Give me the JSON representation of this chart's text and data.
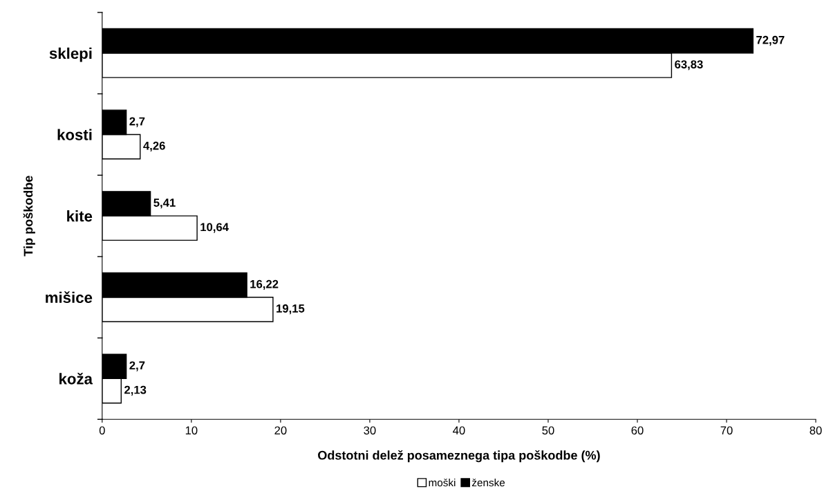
{
  "chart_data": {
    "type": "bar",
    "orientation": "horizontal",
    "xlabel": "Odstotni delež posameznega tipa poškodbe (%)",
    "ylabel": "Tip poškodbe",
    "categories": [
      "sklepi",
      "kosti",
      "kite",
      "mišice",
      "koža"
    ],
    "series": [
      {
        "name": "moški",
        "color": "#ffffff",
        "values": [
          63.83,
          4.26,
          10.64,
          19.15,
          2.13
        ],
        "value_labels": [
          "63,83",
          "4,26",
          "10,64",
          "19,15",
          "2,13"
        ]
      },
      {
        "name": "ženske",
        "color": "#000000",
        "values": [
          72.97,
          2.7,
          5.41,
          16.22,
          2.7
        ],
        "value_labels": [
          "72,97",
          "2,7",
          "5,41",
          "16,22",
          "2,7"
        ]
      }
    ],
    "xlim": [
      0,
      80
    ],
    "xticks": [
      0,
      10,
      20,
      30,
      40,
      50,
      60,
      70,
      80
    ],
    "grid": false,
    "legend": "bottom"
  }
}
